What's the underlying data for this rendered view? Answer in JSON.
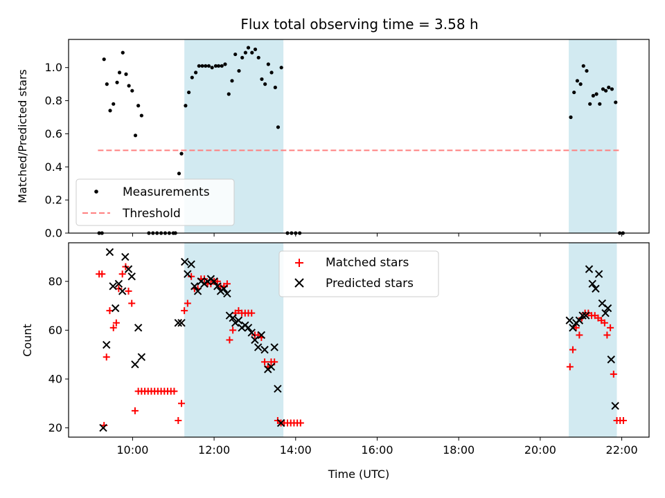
{
  "chart_data": [
    {
      "type": "scatter",
      "title": "Flux total observing time = 3.58 h",
      "xlabel": "",
      "ylabel": "Matched/Predicted stars",
      "xlim": [
        8.43,
        22.67
      ],
      "ylim": [
        0.0,
        1.17
      ],
      "yticks": [
        0.0,
        0.2,
        0.4,
        0.6,
        0.8,
        1.0
      ],
      "ytick_labels": [
        "0.0",
        "0.2",
        "0.4",
        "0.6",
        "0.8",
        "1.0"
      ],
      "shaded_ranges": [
        [
          11.27,
          13.7
        ],
        [
          20.7,
          21.88
        ]
      ],
      "shade_color": "#add8e6",
      "legend_position": "lower-left",
      "series": [
        {
          "name": "Measurements",
          "marker": "dot",
          "color": "#000000",
          "points": [
            [
              9.18,
              0.0
            ],
            [
              9.25,
              0.0
            ],
            [
              9.3,
              1.05
            ],
            [
              9.37,
              0.9
            ],
            [
              9.45,
              0.74
            ],
            [
              9.53,
              0.78
            ],
            [
              9.62,
              0.91
            ],
            [
              9.68,
              0.97
            ],
            [
              9.76,
              1.09
            ],
            [
              9.84,
              0.96
            ],
            [
              9.91,
              0.89
            ],
            [
              9.99,
              0.86
            ],
            [
              10.07,
              0.59
            ],
            [
              10.14,
              0.77
            ],
            [
              10.22,
              0.71
            ],
            [
              10.4,
              0.0
            ],
            [
              10.5,
              0.0
            ],
            [
              10.6,
              0.0
            ],
            [
              10.7,
              0.0
            ],
            [
              10.8,
              0.0
            ],
            [
              10.9,
              0.0
            ],
            [
              11.0,
              0.0
            ],
            [
              11.05,
              0.0
            ],
            [
              11.14,
              0.36
            ],
            [
              11.2,
              0.48
            ],
            [
              11.3,
              0.77
            ],
            [
              11.38,
              0.85
            ],
            [
              11.46,
              0.94
            ],
            [
              11.55,
              0.97
            ],
            [
              11.63,
              1.01
            ],
            [
              11.71,
              1.01
            ],
            [
              11.79,
              1.01
            ],
            [
              11.87,
              1.01
            ],
            [
              11.95,
              1.0
            ],
            [
              12.04,
              1.01
            ],
            [
              12.11,
              1.01
            ],
            [
              12.19,
              1.01
            ],
            [
              12.27,
              1.02
            ],
            [
              12.36,
              0.84
            ],
            [
              12.44,
              0.92
            ],
            [
              12.52,
              1.08
            ],
            [
              12.61,
              0.98
            ],
            [
              12.69,
              1.06
            ],
            [
              12.77,
              1.09
            ],
            [
              12.84,
              1.12
            ],
            [
              12.93,
              1.09
            ],
            [
              13.01,
              1.11
            ],
            [
              13.09,
              1.06
            ],
            [
              13.17,
              0.93
            ],
            [
              13.25,
              0.9
            ],
            [
              13.33,
              1.02
            ],
            [
              13.41,
              0.97
            ],
            [
              13.5,
              0.88
            ],
            [
              13.57,
              0.64
            ],
            [
              13.65,
              1.0
            ],
            [
              13.8,
              0.0
            ],
            [
              13.9,
              0.0
            ],
            [
              14.0,
              0.0
            ],
            [
              14.1,
              0.0
            ],
            [
              20.75,
              0.7
            ],
            [
              20.83,
              0.85
            ],
            [
              20.91,
              0.92
            ],
            [
              20.99,
              0.9
            ],
            [
              21.06,
              1.01
            ],
            [
              21.14,
              0.98
            ],
            [
              21.22,
              0.78
            ],
            [
              21.3,
              0.83
            ],
            [
              21.38,
              0.84
            ],
            [
              21.46,
              0.78
            ],
            [
              21.54,
              0.87
            ],
            [
              21.61,
              0.86
            ],
            [
              21.68,
              0.88
            ],
            [
              21.76,
              0.87
            ],
            [
              21.85,
              0.79
            ],
            [
              21.95,
              0.0
            ],
            [
              22.03,
              0.0
            ]
          ]
        },
        {
          "name": "Threshold",
          "marker": "dashed-line",
          "color": "#ff7f7f",
          "points": [
            [
              9.15,
              0.5
            ],
            [
              21.95,
              0.5
            ]
          ]
        }
      ]
    },
    {
      "type": "scatter",
      "title": "",
      "xlabel": "Time (UTC)",
      "ylabel": "Count",
      "xlim": [
        8.43,
        22.67
      ],
      "ylim": [
        16.2,
        95.8
      ],
      "xticks": [
        10,
        12,
        14,
        16,
        18,
        20,
        22
      ],
      "xtick_labels": [
        "10:00",
        "12:00",
        "14:00",
        "16:00",
        "18:00",
        "20:00",
        "22:00"
      ],
      "yticks": [
        20,
        40,
        60,
        80
      ],
      "ytick_labels": [
        "20",
        "40",
        "60",
        "80"
      ],
      "shaded_ranges": [
        [
          11.27,
          13.7
        ],
        [
          20.7,
          21.88
        ]
      ],
      "shade_color": "#add8e6",
      "legend_position": "top-center",
      "series": [
        {
          "name": "Matched stars",
          "marker": "plus",
          "color": "#ff0000",
          "points": [
            [
              9.18,
              83
            ],
            [
              9.25,
              83
            ],
            [
              9.3,
              21
            ],
            [
              9.36,
              49
            ],
            [
              9.44,
              68
            ],
            [
              9.53,
              61
            ],
            [
              9.6,
              63
            ],
            [
              9.66,
              77
            ],
            [
              9.75,
              83
            ],
            [
              9.83,
              86
            ],
            [
              9.9,
              76
            ],
            [
              9.98,
              71
            ],
            [
              10.06,
              27
            ],
            [
              10.14,
              35
            ],
            [
              10.22,
              35
            ],
            [
              10.3,
              35
            ],
            [
              10.38,
              35
            ],
            [
              10.46,
              35
            ],
            [
              10.54,
              35
            ],
            [
              10.62,
              35
            ],
            [
              10.7,
              35
            ],
            [
              10.78,
              35
            ],
            [
              10.86,
              35
            ],
            [
              10.94,
              35
            ],
            [
              11.02,
              35
            ],
            [
              11.12,
              23
            ],
            [
              11.2,
              30
            ],
            [
              11.27,
              68
            ],
            [
              11.35,
              71
            ],
            [
              11.44,
              82
            ],
            [
              11.52,
              77
            ],
            [
              11.6,
              77
            ],
            [
              11.68,
              81
            ],
            [
              11.76,
              81
            ],
            [
              11.84,
              79
            ],
            [
              11.92,
              79
            ],
            [
              12.0,
              80
            ],
            [
              12.08,
              80
            ],
            [
              12.16,
              78
            ],
            [
              12.24,
              78
            ],
            [
              12.32,
              79
            ],
            [
              12.38,
              56
            ],
            [
              12.46,
              60
            ],
            [
              12.52,
              67
            ],
            [
              12.6,
              68
            ],
            [
              12.68,
              67
            ],
            [
              12.76,
              67
            ],
            [
              12.84,
              67
            ],
            [
              12.92,
              67
            ],
            [
              13.0,
              58
            ],
            [
              13.08,
              58
            ],
            [
              13.16,
              57
            ],
            [
              13.24,
              47
            ],
            [
              13.32,
              45
            ],
            [
              13.4,
              47
            ],
            [
              13.48,
              47
            ],
            [
              13.56,
              23
            ],
            [
              13.64,
              22
            ],
            [
              13.72,
              22
            ],
            [
              13.8,
              22
            ],
            [
              13.88,
              22
            ],
            [
              13.96,
              22
            ],
            [
              14.04,
              22
            ],
            [
              14.12,
              22
            ],
            [
              20.73,
              45
            ],
            [
              20.8,
              52
            ],
            [
              20.88,
              61
            ],
            [
              20.96,
              58
            ],
            [
              21.02,
              65
            ],
            [
              21.1,
              67
            ],
            [
              21.18,
              67
            ],
            [
              21.26,
              66
            ],
            [
              21.34,
              66
            ],
            [
              21.42,
              65
            ],
            [
              21.5,
              64
            ],
            [
              21.58,
              63
            ],
            [
              21.64,
              58
            ],
            [
              21.72,
              61
            ],
            [
              21.8,
              42
            ],
            [
              21.88,
              23
            ],
            [
              21.96,
              23
            ],
            [
              22.04,
              23
            ]
          ]
        },
        {
          "name": "Predicted stars",
          "marker": "x",
          "color": "#000000",
          "points": [
            [
              9.28,
              20
            ],
            [
              9.36,
              54
            ],
            [
              9.44,
              92
            ],
            [
              9.52,
              78
            ],
            [
              9.58,
              69
            ],
            [
              9.66,
              79
            ],
            [
              9.75,
              76
            ],
            [
              9.82,
              90
            ],
            [
              9.9,
              85
            ],
            [
              9.98,
              82
            ],
            [
              10.06,
              46
            ],
            [
              10.14,
              61
            ],
            [
              10.22,
              49
            ],
            [
              11.12,
              63
            ],
            [
              11.2,
              63
            ],
            [
              11.28,
              88
            ],
            [
              11.35,
              83
            ],
            [
              11.44,
              87
            ],
            [
              11.52,
              78
            ],
            [
              11.6,
              76
            ],
            [
              11.68,
              80
            ],
            [
              11.76,
              79
            ],
            [
              11.84,
              80
            ],
            [
              11.92,
              81
            ],
            [
              12.0,
              80
            ],
            [
              12.08,
              78
            ],
            [
              12.16,
              76
            ],
            [
              12.24,
              77
            ],
            [
              12.32,
              75
            ],
            [
              12.38,
              66
            ],
            [
              12.46,
              65
            ],
            [
              12.52,
              63
            ],
            [
              12.6,
              64
            ],
            [
              12.68,
              61
            ],
            [
              12.76,
              62
            ],
            [
              12.84,
              61
            ],
            [
              12.92,
              59
            ],
            [
              13.0,
              56
            ],
            [
              13.08,
              53
            ],
            [
              13.16,
              58
            ],
            [
              13.24,
              52
            ],
            [
              13.32,
              44
            ],
            [
              13.4,
              45
            ],
            [
              13.48,
              53
            ],
            [
              13.56,
              36
            ],
            [
              13.64,
              22
            ],
            [
              20.72,
              64
            ],
            [
              20.8,
              61
            ],
            [
              20.88,
              63
            ],
            [
              20.96,
              64
            ],
            [
              21.04,
              66
            ],
            [
              21.12,
              66
            ],
            [
              21.2,
              85
            ],
            [
              21.28,
              79
            ],
            [
              21.36,
              77
            ],
            [
              21.44,
              83
            ],
            [
              21.52,
              71
            ],
            [
              21.6,
              67
            ],
            [
              21.66,
              69
            ],
            [
              21.74,
              48
            ],
            [
              21.84,
              29
            ]
          ]
        }
      ]
    }
  ]
}
